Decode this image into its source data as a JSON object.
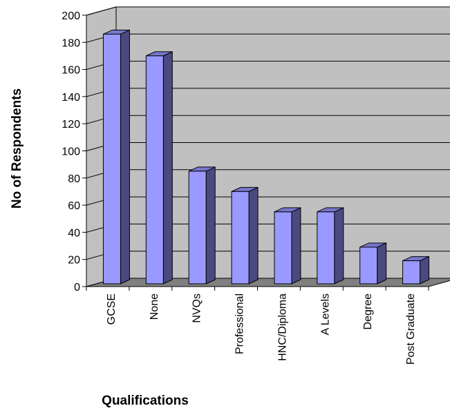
{
  "chart_data": {
    "type": "bar",
    "title": "",
    "xlabel": "Qualifications",
    "ylabel": "No of Respondents",
    "categories": [
      "GCSE",
      "None",
      "NVQs",
      "Professional",
      "HNC/Diploma",
      "A Levels",
      "Degree",
      "Post Graduate"
    ],
    "values": [
      184,
      168,
      83,
      68,
      53,
      53,
      27,
      17
    ],
    "ylim": [
      0,
      200
    ],
    "yticks": [
      "0",
      "20",
      "40",
      "60",
      "80",
      "100",
      "120",
      "140",
      "160",
      "180",
      "200"
    ],
    "grid": true,
    "legend": "none",
    "style": "3d",
    "colors": {
      "bar_front": "#9999ff",
      "bar_side": "#4a4a80",
      "bar_top": "#7777cc",
      "wall": "#c0c0c0",
      "floor": "#808080",
      "gridline": "#000000"
    }
  }
}
